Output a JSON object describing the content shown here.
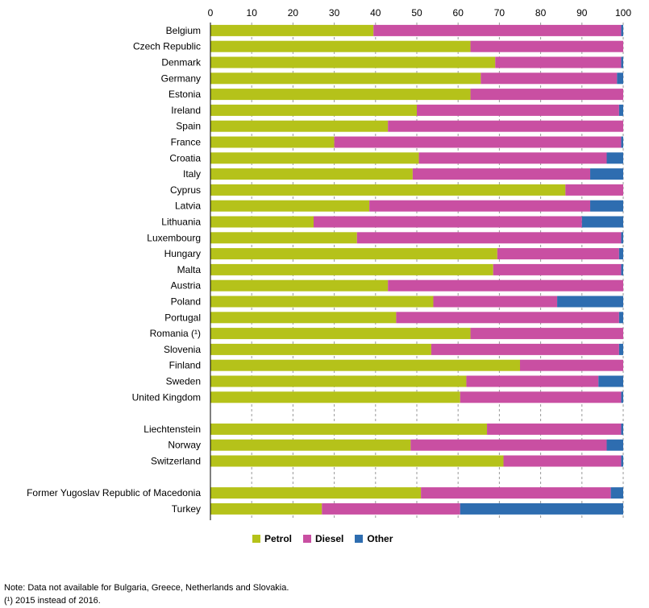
{
  "colors": {
    "petrol": "#b5c21a",
    "diesel": "#c94fa2",
    "other": "#2e6db0",
    "grid": "#999999",
    "axis": "#000000"
  },
  "chart_data": {
    "type": "bar",
    "orientation": "horizontal",
    "stacked": true,
    "xlim": [
      0,
      100
    ],
    "ticks": [
      "0",
      "10",
      "20",
      "30",
      "40",
      "50",
      "60",
      "70",
      "80",
      "90",
      "100"
    ],
    "grid": true,
    "legend_position": "bottom",
    "categories": [
      "Belgium",
      "Czech Republic",
      "Denmark",
      "Germany",
      "Estonia",
      "Ireland",
      "Spain",
      "France",
      "Croatia",
      "Italy",
      "Cyprus",
      "Latvia",
      "Lithuania",
      "Luxembourg",
      "Hungary",
      "Malta",
      "Austria",
      "Poland",
      "Portugal",
      "Romania  (¹)",
      "Slovenia",
      "Finland",
      "Sweden",
      "United Kingdom",
      "Liechtenstein",
      "Norway",
      "Switzerland",
      "Former Yugoslav Republic of Macedonia",
      "Turkey"
    ],
    "groups": [
      24,
      3,
      2
    ],
    "series": [
      {
        "name": "Petrol",
        "key": "petrol",
        "values": [
          39.5,
          63,
          69,
          65.5,
          63,
          50,
          43,
          30,
          50.5,
          49,
          86,
          38.5,
          25,
          35.5,
          69.5,
          68.5,
          43,
          54,
          45,
          63,
          53.5,
          75,
          62,
          60.5,
          67,
          48.5,
          71,
          51,
          27
        ]
      },
      {
        "name": "Diesel",
        "key": "diesel",
        "values": [
          60,
          37,
          30.5,
          33,
          37,
          49,
          57,
          69.5,
          45.5,
          43,
          14,
          53.5,
          65,
          64,
          29.5,
          31,
          57,
          30,
          54,
          37,
          45.5,
          25,
          32,
          39,
          32.5,
          47.5,
          28.5,
          46,
          33.5
        ]
      },
      {
        "name": "Other",
        "key": "other",
        "values": [
          0.5,
          0,
          0.5,
          1.5,
          0,
          1,
          0,
          0.5,
          4,
          8,
          0,
          8,
          10,
          0.5,
          1,
          0.5,
          0,
          16,
          1,
          0,
          1,
          0,
          6,
          0.5,
          0.5,
          4,
          0.5,
          3,
          39.5
        ]
      }
    ]
  },
  "legend": {
    "petrol": "Petrol",
    "diesel": "Diesel",
    "other": "Other"
  },
  "notes": {
    "line1": "Note: Data not available for Bulgaria, Greece, Netherlands and Slovakia.",
    "line2": "(¹) 2015 instead of 2016."
  }
}
